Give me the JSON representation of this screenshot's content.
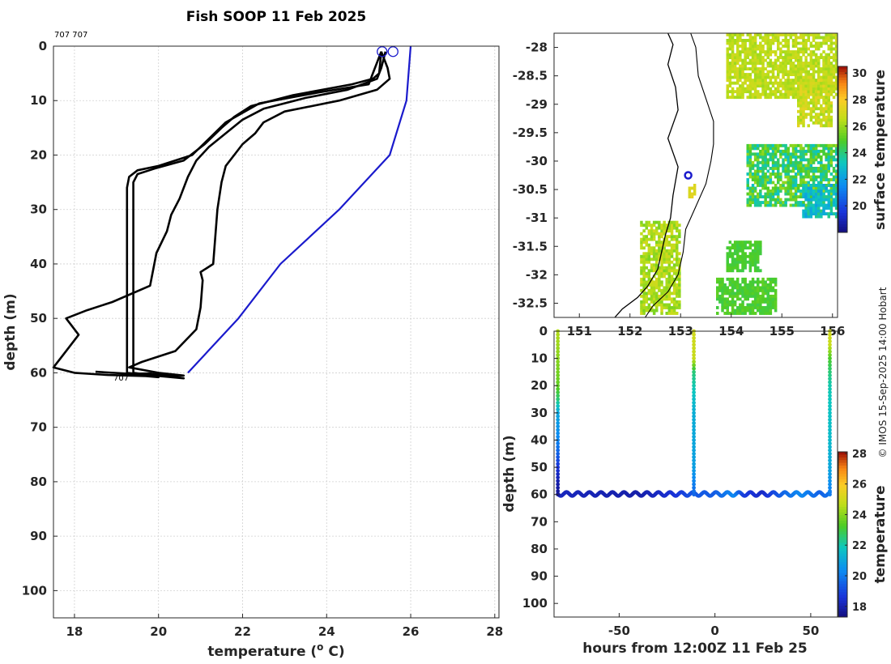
{
  "figure": {
    "title": "Fish SOOP 11 Feb 2025",
    "credit": "© IMOS 15-Sep-2025 14:00 Hobart",
    "cast_labels": "707 707",
    "bottom_label": "707"
  },
  "colors": {
    "cast_line": "#000000",
    "climatology_line": "#1a1acc",
    "marker": "#1a1acc",
    "land": "#ffffff",
    "coast": "#000000"
  },
  "chart_data": [
    {
      "id": "profile",
      "type": "line",
      "xlabel": "temperature (",
      "xlabel_sup": "o",
      "xlabel_tail": " C)",
      "ylabel": "depth (m)",
      "xlim": [
        17.5,
        28.1
      ],
      "ylim": [
        105,
        0
      ],
      "xticks": [
        18,
        20,
        22,
        24,
        26,
        28
      ],
      "yticks": [
        0,
        10,
        20,
        30,
        40,
        50,
        60,
        70,
        80,
        90,
        100
      ],
      "grid": true,
      "series": [
        {
          "style": "cast",
          "points": [
            [
              25.3,
              1
            ],
            [
              25.2,
              3
            ],
            [
              25.1,
              5
            ],
            [
              25.0,
              7
            ],
            [
              23.8,
              8.5
            ],
            [
              22.4,
              10.5
            ],
            [
              21.6,
              14
            ],
            [
              21.2,
              17
            ],
            [
              20.8,
              20
            ],
            [
              20.0,
              22
            ],
            [
              19.5,
              22.8
            ],
            [
              19.3,
              24
            ],
            [
              19.25,
              26
            ],
            [
              19.25,
              40
            ],
            [
              19.25,
              60
            ],
            [
              19.6,
              60.3
            ],
            [
              20.2,
              60.6
            ],
            [
              19.8,
              60.1
            ],
            [
              19.3,
              60.2
            ]
          ]
        },
        {
          "style": "cast",
          "points": [
            [
              25.3,
              1
            ],
            [
              25.25,
              5
            ],
            [
              25.1,
              6
            ],
            [
              24.6,
              7
            ],
            [
              23.2,
              9
            ],
            [
              22.2,
              11
            ],
            [
              21.8,
              13
            ],
            [
              21.5,
              15
            ],
            [
              21.1,
              18
            ],
            [
              20.6,
              21
            ],
            [
              19.9,
              22.5
            ],
            [
              19.5,
              23.5
            ],
            [
              19.4,
              25
            ],
            [
              19.4,
              40
            ],
            [
              19.4,
              60
            ],
            [
              19.9,
              60.5
            ],
            [
              20.6,
              61
            ],
            [
              20.1,
              60.3
            ],
            [
              19.5,
              60.5
            ]
          ]
        },
        {
          "style": "cast",
          "points": [
            [
              25.4,
              1
            ],
            [
              25.3,
              4
            ],
            [
              25.2,
              6
            ],
            [
              24.5,
              8
            ],
            [
              23.5,
              9.5
            ],
            [
              22.5,
              11.5
            ],
            [
              22.0,
              13.5
            ],
            [
              21.6,
              16
            ],
            [
              21.2,
              18.5
            ],
            [
              20.9,
              21
            ],
            [
              20.7,
              24
            ],
            [
              20.5,
              28
            ],
            [
              20.3,
              31
            ],
            [
              20.2,
              34
            ],
            [
              19.95,
              38
            ],
            [
              19.9,
              40
            ],
            [
              19.8,
              44
            ],
            [
              18.9,
              47
            ],
            [
              18.3,
              48.5
            ],
            [
              17.8,
              50
            ],
            [
              17.9,
              51
            ],
            [
              18.1,
              53
            ],
            [
              17.9,
              55
            ],
            [
              17.7,
              57
            ],
            [
              17.5,
              59
            ],
            [
              18.0,
              60
            ],
            [
              18.8,
              60.4
            ],
            [
              19.7,
              60.6
            ],
            [
              20.0,
              60.8
            ],
            [
              19.6,
              60.3
            ],
            [
              18.5,
              59.8
            ]
          ]
        },
        {
          "style": "cast",
          "points": [
            [
              25.3,
              1
            ],
            [
              25.45,
              4
            ],
            [
              25.5,
              6
            ],
            [
              25.2,
              8
            ],
            [
              24.3,
              10
            ],
            [
              23.0,
              12
            ],
            [
              22.5,
              14
            ],
            [
              22.3,
              16
            ],
            [
              22.0,
              18
            ],
            [
              21.8,
              20
            ],
            [
              21.6,
              22
            ],
            [
              21.5,
              25
            ],
            [
              21.4,
              30
            ],
            [
              21.35,
              35
            ],
            [
              21.3,
              40
            ],
            [
              21.0,
              41.5
            ],
            [
              21.05,
              43
            ],
            [
              21.0,
              48
            ],
            [
              20.9,
              52
            ],
            [
              20.4,
              56
            ],
            [
              19.6,
              58
            ],
            [
              19.3,
              59
            ],
            [
              20.0,
              60
            ],
            [
              20.6,
              60.5
            ],
            [
              19.9,
              60.2
            ]
          ]
        },
        {
          "style": "climatology",
          "points": [
            [
              26.0,
              0
            ],
            [
              25.9,
              10
            ],
            [
              25.5,
              20
            ],
            [
              24.3,
              30
            ],
            [
              22.9,
              40
            ],
            [
              21.9,
              50
            ],
            [
              20.7,
              60
            ]
          ]
        }
      ],
      "markers": [
        {
          "x": 25.32,
          "y": 1
        },
        {
          "x": 25.58,
          "y": 1
        }
      ]
    },
    {
      "id": "map",
      "type": "heatmap",
      "xlim": [
        150.5,
        156.1
      ],
      "ylim": [
        -32.75,
        -27.75
      ],
      "xticks": [
        151,
        152,
        153,
        154,
        155,
        156
      ],
      "xtick_labels": [
        "151",
        "152",
        "153",
        "154",
        "155",
        "156"
      ],
      "yticks": [
        -28,
        -28.5,
        -29,
        -29.5,
        -30,
        -30.5,
        -31,
        -31.5,
        -32,
        -32.5
      ],
      "ytick_labels": [
        "-28",
        "-28.5",
        "-29",
        "-29.5",
        "-30",
        "-30.5",
        "-31",
        "-31.5",
        "-32",
        "-32.5"
      ],
      "colorbar_label": "surface temperature",
      "colorbar_range": [
        18,
        30.5
      ],
      "colorbar_ticks": [
        20,
        22,
        24,
        26,
        28,
        30
      ],
      "station": {
        "lon": 153.15,
        "lat": -30.25
      },
      "sst_patches": [
        {
          "lon": [
            153.9,
            156.1
          ],
          "lat": [
            -28.9,
            -27.75
          ],
          "t": [
            26.0,
            27.0
          ]
        },
        {
          "lon": [
            155.3,
            156.0
          ],
          "lat": [
            -29.4,
            -28.5
          ],
          "t": [
            26.0,
            27.5
          ]
        },
        {
          "lon": [
            154.3,
            156.1
          ],
          "lat": [
            -30.8,
            -29.7
          ],
          "t": [
            23.0,
            26.0
          ]
        },
        {
          "lon": [
            155.4,
            156.1
          ],
          "lat": [
            -31.0,
            -30.4
          ],
          "t": [
            22.0,
            24.0
          ]
        },
        {
          "lon": [
            153.9,
            154.6
          ],
          "lat": [
            -31.95,
            -31.4
          ],
          "t": [
            24.5,
            25.0
          ]
        },
        {
          "lon": [
            153.7,
            154.9
          ],
          "lat": [
            -32.7,
            -32.1
          ],
          "t": [
            24.5,
            25.2
          ]
        },
        {
          "lon": [
            152.2,
            153.0
          ],
          "lat": [
            -32.7,
            -31.1
          ],
          "t": [
            25.5,
            27.0
          ]
        },
        {
          "lon": [
            153.15,
            153.3
          ],
          "lat": [
            -30.65,
            -30.4
          ],
          "t": [
            27.0,
            27.5
          ]
        }
      ],
      "coastline": [
        [
          152.75,
          -27.75
        ],
        [
          152.85,
          -27.95
        ],
        [
          152.75,
          -28.3
        ],
        [
          152.9,
          -28.7
        ],
        [
          152.95,
          -29.1
        ],
        [
          152.75,
          -29.6
        ],
        [
          152.95,
          -30.1
        ],
        [
          152.85,
          -30.6
        ],
        [
          152.8,
          -31.0
        ],
        [
          152.7,
          -31.3
        ],
        [
          152.6,
          -31.7
        ],
        [
          152.55,
          -31.9
        ],
        [
          152.35,
          -32.2
        ],
        [
          152.15,
          -32.4
        ],
        [
          151.85,
          -32.6
        ],
        [
          151.7,
          -32.75
        ]
      ],
      "isobath": [
        [
          153.2,
          -27.75
        ],
        [
          153.3,
          -28.0
        ],
        [
          153.35,
          -28.5
        ],
        [
          153.5,
          -28.9
        ],
        [
          153.65,
          -29.3
        ],
        [
          153.65,
          -29.7
        ],
        [
          153.6,
          -30.0
        ],
        [
          153.5,
          -30.4
        ],
        [
          153.3,
          -30.8
        ],
        [
          153.1,
          -31.2
        ],
        [
          153.05,
          -31.6
        ],
        [
          152.95,
          -32.0
        ],
        [
          152.75,
          -32.3
        ],
        [
          152.45,
          -32.55
        ],
        [
          152.3,
          -32.75
        ]
      ]
    },
    {
      "id": "section",
      "type": "scatter",
      "xlabel": "hours from 12:00Z 11 Feb 25",
      "ylabel": "depth (m)",
      "xlim": [
        -84,
        64
      ],
      "ylim": [
        105,
        0
      ],
      "xticks": [
        -50,
        0,
        50
      ],
      "xtick_labels": [
        "-50",
        "0",
        "50"
      ],
      "yticks": [
        0,
        10,
        20,
        30,
        40,
        50,
        60,
        70,
        80,
        90,
        100
      ],
      "grid": false,
      "colorbar_label": "temperature",
      "colorbar_range": [
        17.3,
        28.1
      ],
      "colorbar_ticks": [
        18,
        20,
        22,
        24,
        26,
        28
      ],
      "profiles": [
        {
          "hours": -82,
          "profile": [
            [
              0,
              24.5
            ],
            [
              10,
              24.0
            ],
            [
              20,
              23.5
            ],
            [
              25,
              22.5
            ],
            [
              30,
              21.0
            ],
            [
              40,
              20.2
            ],
            [
              45,
              19.5
            ],
            [
              50,
              18.6
            ],
            [
              55,
              18.0
            ],
            [
              60,
              17.6
            ]
          ]
        },
        {
          "hours": -11,
          "profile": [
            [
              0,
              25.0
            ],
            [
              10,
              24.8
            ],
            [
              15,
              22.5
            ],
            [
              20,
              22.0
            ],
            [
              30,
              21.2
            ],
            [
              40,
              21.0
            ],
            [
              50,
              20.8
            ],
            [
              55,
              20.2
            ],
            [
              60,
              19.6
            ]
          ]
        },
        {
          "hours": 60,
          "profile": [
            [
              0,
              25.0
            ],
            [
              5,
              24.8
            ],
            [
              10,
              23.2
            ],
            [
              15,
              22.5
            ],
            [
              20,
              22.0
            ],
            [
              30,
              21.7
            ],
            [
              40,
              21.5
            ],
            [
              50,
              21.0
            ],
            [
              55,
              20.5
            ],
            [
              60,
              20.0
            ]
          ]
        }
      ],
      "bottom": {
        "from": -82,
        "to": 60,
        "depth": 59.8,
        "amp": 0.7,
        "period": 6
      },
      "bottom_temps": [
        [
          -82,
          18.2
        ],
        [
          -40,
          17.9
        ],
        [
          -20,
          18.6
        ],
        [
          -11,
          19.3
        ],
        [
          0,
          19.4
        ],
        [
          10,
          20.3
        ],
        [
          15,
          18.8
        ],
        [
          25,
          18.3
        ],
        [
          35,
          19.5
        ],
        [
          45,
          20.3
        ],
        [
          55,
          19.5
        ],
        [
          60,
          19.8
        ]
      ]
    }
  ]
}
